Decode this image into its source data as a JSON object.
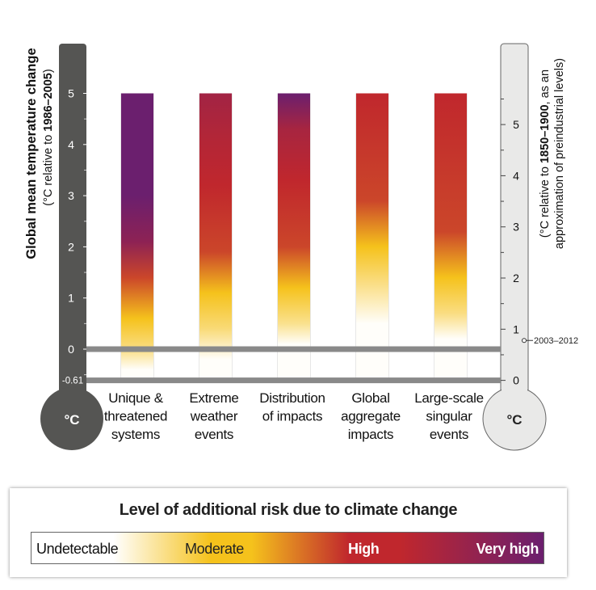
{
  "chart_data": {
    "type": "heatmap",
    "left_axis": {
      "title": "Global mean temperature change",
      "subtitle_pre": "(°C relative to ",
      "subtitle_bold": "1986–2005",
      "subtitle_post": ")",
      "ticks": [
        5,
        4,
        3,
        2,
        1,
        0
      ],
      "extra_tick_label": "-0.61",
      "extra_tick_value": -0.61,
      "bulb_label": "°C",
      "range": [
        -0.61,
        5
      ]
    },
    "right_axis": {
      "line1_pre": "(°C relative to ",
      "line1_bold": "1850–1900",
      "line1_post": ", as an",
      "line2": "approximation of preindustrial levels)",
      "ticks": [
        5,
        4,
        3,
        2,
        1,
        0
      ],
      "offset_from_left": 0.61,
      "marker_label": "2003–2012",
      "marker_value": 0.78,
      "bulb_label": "°C"
    },
    "baseline_lines": [
      0,
      -0.61
    ],
    "categories": [
      "Unique & threatened systems",
      "Extreme weather events",
      "Distribution of impacts",
      "Global aggregate impacts",
      "Large-scale singular events"
    ],
    "category_lines": [
      [
        "Unique &",
        "threatened",
        "systems"
      ],
      [
        "Extreme",
        "weather",
        "events"
      ],
      [
        "Distribution",
        "of impacts"
      ],
      [
        "Global",
        "aggregate",
        "impacts"
      ],
      [
        "Large-scale",
        "singular",
        "events"
      ]
    ],
    "risk_scale": {
      "title": "Level of additional risk due to climate change",
      "levels": [
        "Undetectable",
        "Moderate",
        "High",
        "Very high"
      ],
      "colors": [
        "#ffffff",
        "#f5c21c",
        "#c0272d",
        "#6b1f6e"
      ]
    },
    "series": [
      {
        "stops": [
          [
            -0.4,
            0.02
          ],
          [
            0.0,
            0.55
          ],
          [
            0.6,
            1.0
          ],
          [
            1.4,
            1.8
          ],
          [
            2.1,
            2.6
          ],
          [
            3.0,
            3.0
          ],
          [
            5.0,
            3.0
          ]
        ]
      },
      {
        "stops": [
          [
            -0.2,
            0.02
          ],
          [
            0.4,
            0.6
          ],
          [
            1.1,
            1.0
          ],
          [
            1.9,
            1.8
          ],
          [
            3.2,
            2.0
          ],
          [
            4.1,
            2.15
          ],
          [
            5.0,
            2.35
          ]
        ]
      },
      {
        "stops": [
          [
            0.1,
            0.02
          ],
          [
            0.5,
            0.5
          ],
          [
            1.2,
            1.0
          ],
          [
            2.0,
            1.8
          ],
          [
            3.3,
            2.0
          ],
          [
            4.3,
            2.3
          ],
          [
            5.0,
            3.0
          ]
        ]
      },
      {
        "stops": [
          [
            0.5,
            0.02
          ],
          [
            1.3,
            0.55
          ],
          [
            2.0,
            1.0
          ],
          [
            2.9,
            1.8
          ],
          [
            5.0,
            2.0
          ]
        ]
      },
      {
        "stops": [
          [
            0.2,
            0.02
          ],
          [
            0.7,
            0.55
          ],
          [
            1.4,
            1.0
          ],
          [
            2.3,
            1.8
          ],
          [
            5.0,
            2.0
          ]
        ]
      }
    ]
  }
}
